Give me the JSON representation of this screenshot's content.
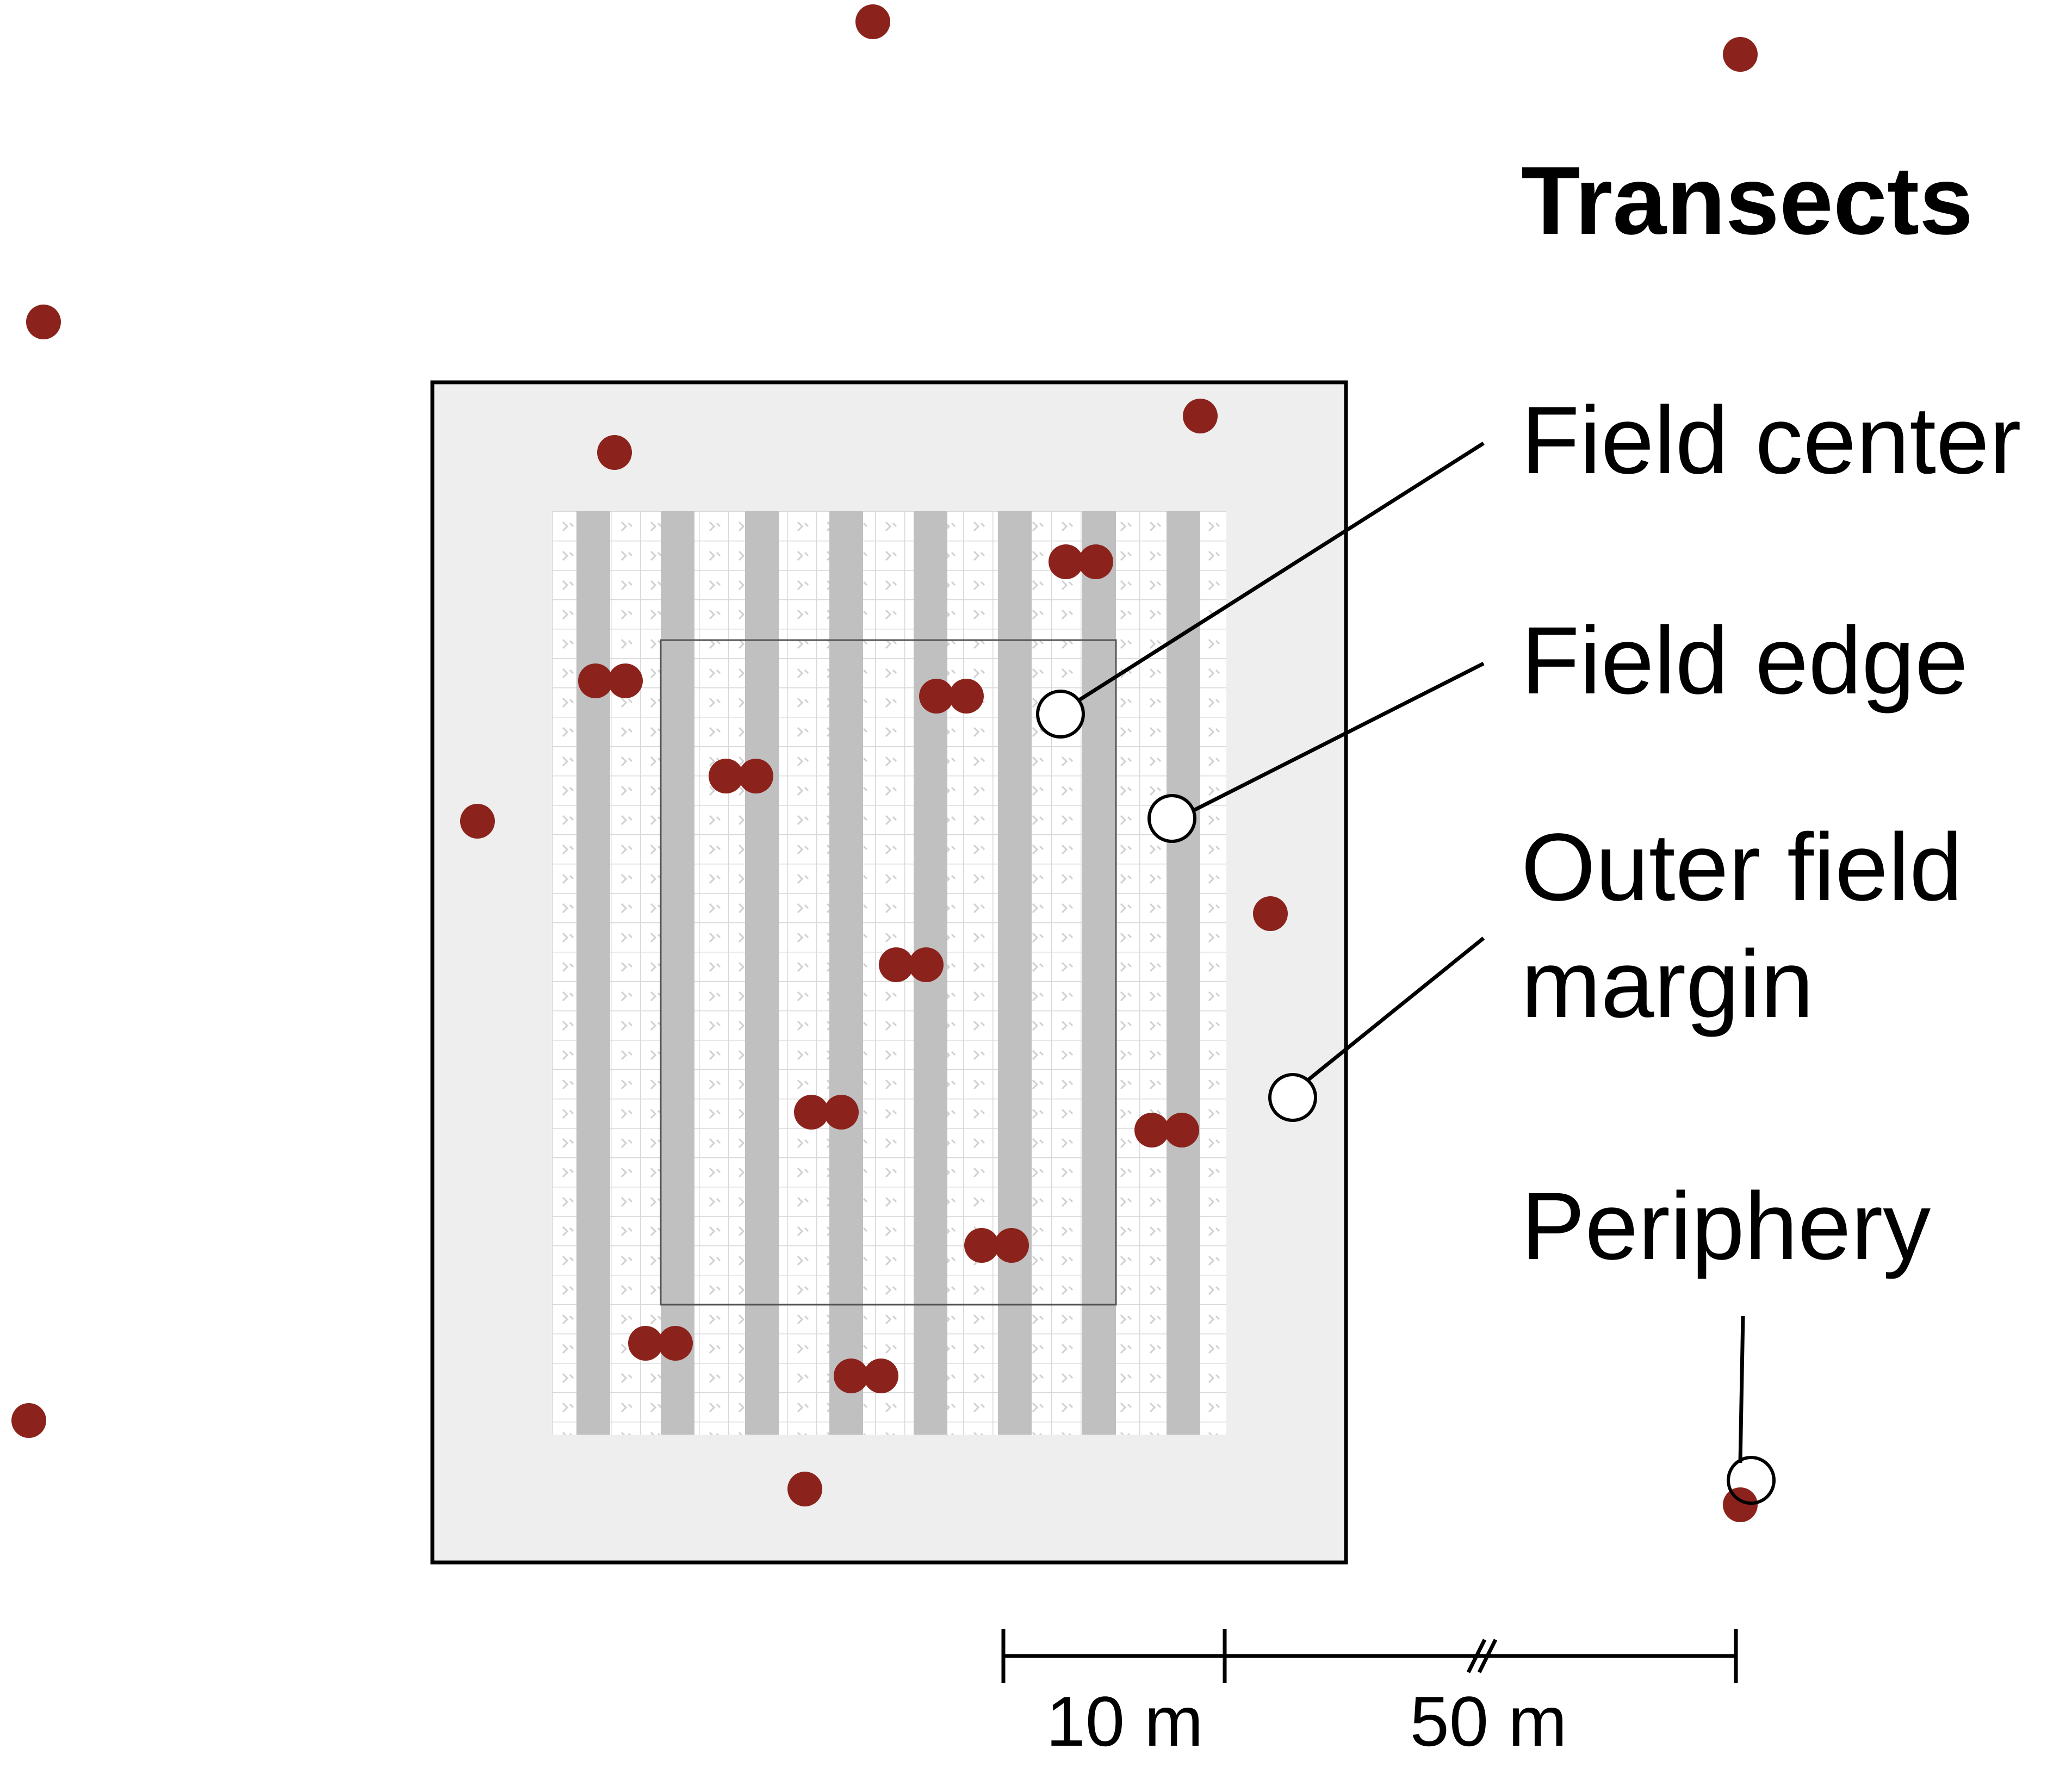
{
  "title": "Transects",
  "legend": {
    "field_center": "Field center",
    "field_edge": "Field edge",
    "outer_margin_line1": "Outer field",
    "outer_margin_line2": "margin",
    "periphery": "Periphery"
  },
  "scale": {
    "label_10": "10 m",
    "label_50": "50 m"
  },
  "colors": {
    "point": "#8b231c",
    "margin_fill": "#eeeeee",
    "strip": "#c0c0c0",
    "grid_line": "#d2d2d2",
    "outline": "#000000"
  }
}
